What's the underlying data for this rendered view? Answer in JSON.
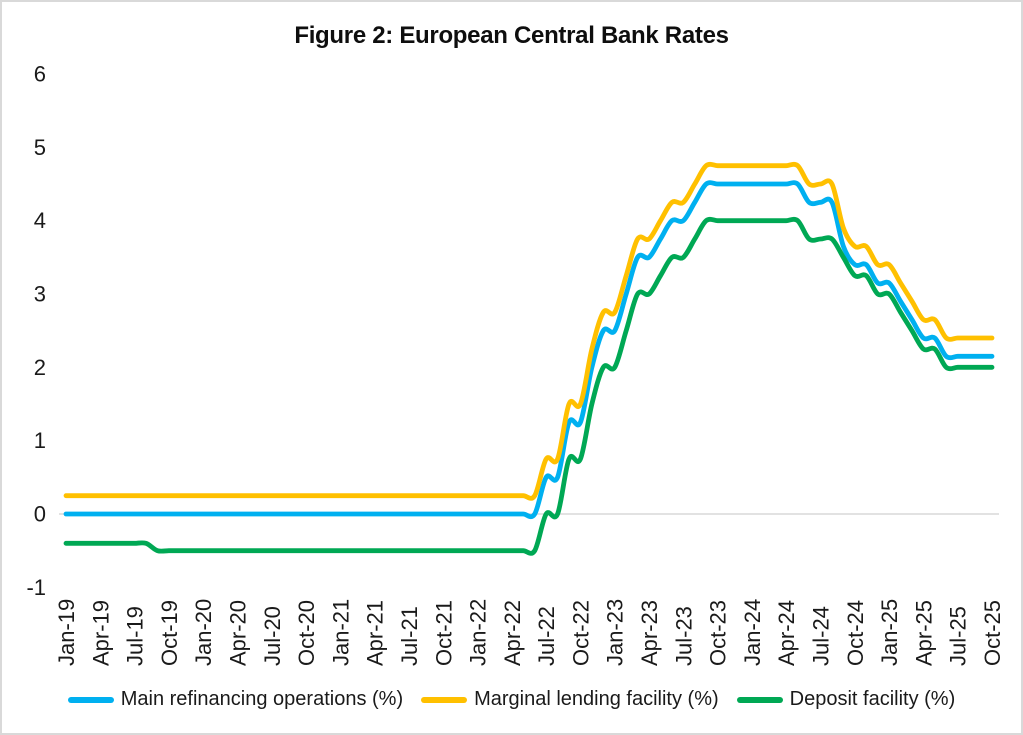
{
  "title": "Figure 2: European Central Bank Rates",
  "colors": {
    "mro": "#00B0F0",
    "mlf": "#FFC000",
    "df": "#00A854",
    "gridline": "#D9D9D9",
    "frame": "#D9D9D9",
    "text": "#1A1A1A"
  },
  "legend": {
    "items": [
      {
        "key": "mro",
        "label": "Main refinancing operations (%)",
        "color": "#00B0F0"
      },
      {
        "key": "mlf",
        "label": "Marginal lending facility (%)",
        "color": "#FFC000"
      },
      {
        "key": "df",
        "label": "Deposit facility (%)",
        "color": "#00A854"
      }
    ]
  },
  "chart_data": {
    "type": "line",
    "title": "Figure 2: European Central Bank Rates",
    "xlabel": "",
    "ylabel": "",
    "x_frequency": "monthly",
    "x_start": "Jan-19",
    "x_end": "Oct-25",
    "months_per_tick": 3,
    "tick_labels": [
      "Jan-19",
      "Apr-19",
      "Jul-19",
      "Oct-19",
      "Jan-20",
      "Apr-20",
      "Jul-20",
      "Oct-20",
      "Jan-21",
      "Apr-21",
      "Jul-21",
      "Oct-21",
      "Jan-22",
      "Apr-22",
      "Jul-22",
      "Oct-22",
      "Jan-23",
      "Apr-23",
      "Jul-23",
      "Oct-23",
      "Jan-24",
      "Apr-24",
      "Jul-24",
      "Oct-24",
      "Jan-25",
      "Apr-25",
      "Jul-25",
      "Oct-25"
    ],
    "ylim": [
      -1,
      6
    ],
    "y_tick_step": 1,
    "y_tick_labels": [
      "6",
      "5",
      "4",
      "3",
      "2",
      "1",
      "0",
      "-1"
    ],
    "grid": "horizontal-zero-line-only",
    "smoothed": true,
    "legend_position": "bottom",
    "series": [
      {
        "name": "Main refinancing operations (%)",
        "color": "#00B0F0",
        "values": [
          0,
          0,
          0,
          0,
          0,
          0,
          0,
          0,
          0,
          0,
          0,
          0,
          0,
          0,
          0,
          0,
          0,
          0,
          0,
          0,
          0,
          0,
          0,
          0,
          0,
          0,
          0,
          0,
          0,
          0,
          0,
          0,
          0,
          0,
          0,
          0,
          0,
          0,
          0,
          0,
          0,
          0,
          0.5,
          0.5,
          1.25,
          1.25,
          2,
          2.5,
          2.5,
          3,
          3.5,
          3.5,
          3.75,
          4,
          4,
          4.25,
          4.5,
          4.5,
          4.5,
          4.5,
          4.5,
          4.5,
          4.5,
          4.5,
          4.5,
          4.25,
          4.25,
          4.25,
          3.65,
          3.4,
          3.4,
          3.15,
          3.15,
          2.9,
          2.65,
          2.4,
          2.4,
          2.15,
          2.15,
          2.15,
          2.15,
          2.15
        ]
      },
      {
        "name": "Marginal lending facility (%)",
        "color": "#FFC000",
        "values": [
          0.25,
          0.25,
          0.25,
          0.25,
          0.25,
          0.25,
          0.25,
          0.25,
          0.25,
          0.25,
          0.25,
          0.25,
          0.25,
          0.25,
          0.25,
          0.25,
          0.25,
          0.25,
          0.25,
          0.25,
          0.25,
          0.25,
          0.25,
          0.25,
          0.25,
          0.25,
          0.25,
          0.25,
          0.25,
          0.25,
          0.25,
          0.25,
          0.25,
          0.25,
          0.25,
          0.25,
          0.25,
          0.25,
          0.25,
          0.25,
          0.25,
          0.25,
          0.75,
          0.75,
          1.5,
          1.5,
          2.25,
          2.75,
          2.75,
          3.25,
          3.75,
          3.75,
          4,
          4.25,
          4.25,
          4.5,
          4.75,
          4.75,
          4.75,
          4.75,
          4.75,
          4.75,
          4.75,
          4.75,
          4.75,
          4.5,
          4.5,
          4.5,
          3.9,
          3.65,
          3.65,
          3.4,
          3.4,
          3.15,
          2.9,
          2.65,
          2.65,
          2.4,
          2.4,
          2.4,
          2.4,
          2.4
        ]
      },
      {
        "name": "Deposit facility (%)",
        "color": "#00A854",
        "values": [
          -0.4,
          -0.4,
          -0.4,
          -0.4,
          -0.4,
          -0.4,
          -0.4,
          -0.4,
          -0.5,
          -0.5,
          -0.5,
          -0.5,
          -0.5,
          -0.5,
          -0.5,
          -0.5,
          -0.5,
          -0.5,
          -0.5,
          -0.5,
          -0.5,
          -0.5,
          -0.5,
          -0.5,
          -0.5,
          -0.5,
          -0.5,
          -0.5,
          -0.5,
          -0.5,
          -0.5,
          -0.5,
          -0.5,
          -0.5,
          -0.5,
          -0.5,
          -0.5,
          -0.5,
          -0.5,
          -0.5,
          -0.5,
          -0.5,
          0,
          0,
          0.75,
          0.75,
          1.5,
          2,
          2,
          2.5,
          3,
          3,
          3.25,
          3.5,
          3.5,
          3.75,
          4,
          4,
          4,
          4,
          4,
          4,
          4,
          4,
          4,
          3.75,
          3.75,
          3.75,
          3.5,
          3.25,
          3.25,
          3,
          3,
          2.75,
          2.5,
          2.25,
          2.25,
          2,
          2,
          2,
          2,
          2
        ]
      }
    ]
  }
}
